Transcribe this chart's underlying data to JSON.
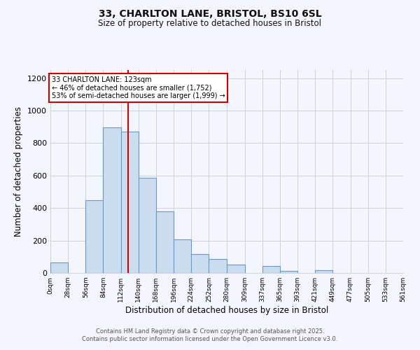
{
  "title_line1": "33, CHARLTON LANE, BRISTOL, BS10 6SL",
  "title_line2": "Size of property relative to detached houses in Bristol",
  "xlabel": "Distribution of detached houses by size in Bristol",
  "ylabel": "Number of detached properties",
  "bar_edges": [
    0,
    28,
    56,
    84,
    112,
    140,
    168,
    196,
    224,
    252,
    280,
    309,
    337,
    365,
    393,
    421,
    449,
    477,
    505,
    533,
    561
  ],
  "bar_heights": [
    65,
    0,
    450,
    895,
    870,
    585,
    380,
    205,
    115,
    88,
    53,
    0,
    45,
    15,
    0,
    17,
    0,
    0,
    0,
    0
  ],
  "bar_color": "#ccddf0",
  "bar_edge_color": "#6699cc",
  "vline_x": 123,
  "vline_color": "#cc0000",
  "annotation_title": "33 CHARLTON LANE: 123sqm",
  "annotation_line1": "← 46% of detached houses are smaller (1,752)",
  "annotation_line2": "53% of semi-detached houses are larger (1,999) →",
  "annotation_box_color": "#ffffff",
  "annotation_box_edge": "#cc0000",
  "ylim": [
    0,
    1250
  ],
  "yticks": [
    0,
    200,
    400,
    600,
    800,
    1000,
    1200
  ],
  "xtick_labels": [
    "0sqm",
    "28sqm",
    "56sqm",
    "84sqm",
    "112sqm",
    "140sqm",
    "168sqm",
    "196sqm",
    "224sqm",
    "252sqm",
    "280sqm",
    "309sqm",
    "337sqm",
    "365sqm",
    "393sqm",
    "421sqm",
    "449sqm",
    "477sqm",
    "505sqm",
    "533sqm",
    "561sqm"
  ],
  "footnote1": "Contains HM Land Registry data © Crown copyright and database right 2025.",
  "footnote2": "Contains public sector information licensed under the Open Government Licence v3.0.",
  "bg_color": "#f5f5ff",
  "grid_color": "#d0d0e0"
}
